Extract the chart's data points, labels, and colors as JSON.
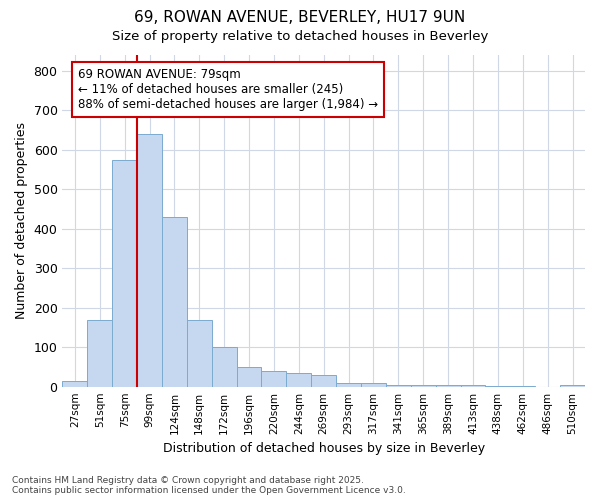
{
  "title1": "69, ROWAN AVENUE, BEVERLEY, HU17 9UN",
  "title2": "Size of property relative to detached houses in Beverley",
  "xlabel": "Distribution of detached houses by size in Beverley",
  "ylabel": "Number of detached properties",
  "categories": [
    "27sqm",
    "51sqm",
    "75sqm",
    "99sqm",
    "124sqm",
    "148sqm",
    "172sqm",
    "196sqm",
    "220sqm",
    "244sqm",
    "269sqm",
    "293sqm",
    "317sqm",
    "341sqm",
    "365sqm",
    "389sqm",
    "413sqm",
    "438sqm",
    "462sqm",
    "486sqm",
    "510sqm"
  ],
  "values": [
    15,
    170,
    575,
    640,
    430,
    170,
    100,
    50,
    40,
    35,
    30,
    10,
    10,
    3,
    3,
    3,
    3,
    2,
    2,
    0,
    5
  ],
  "bar_color": "#c5d8f0",
  "bar_edge_color": "#7aabcf",
  "property_line_bar_index": 2,
  "property_line_color": "#cc0000",
  "annotation_text": "69 ROWAN AVENUE: 79sqm\n← 11% of detached houses are smaller (245)\n88% of semi-detached houses are larger (1,984) →",
  "annotation_box_color": "#ffffff",
  "annotation_box_edge_color": "#cc0000",
  "ylim": [
    0,
    840
  ],
  "yticks": [
    0,
    100,
    200,
    300,
    400,
    500,
    600,
    700,
    800
  ],
  "background_color": "#ffffff",
  "grid_color": "#d0d8e8",
  "footnote": "Contains HM Land Registry data © Crown copyright and database right 2025.\nContains public sector information licensed under the Open Government Licence v3.0."
}
